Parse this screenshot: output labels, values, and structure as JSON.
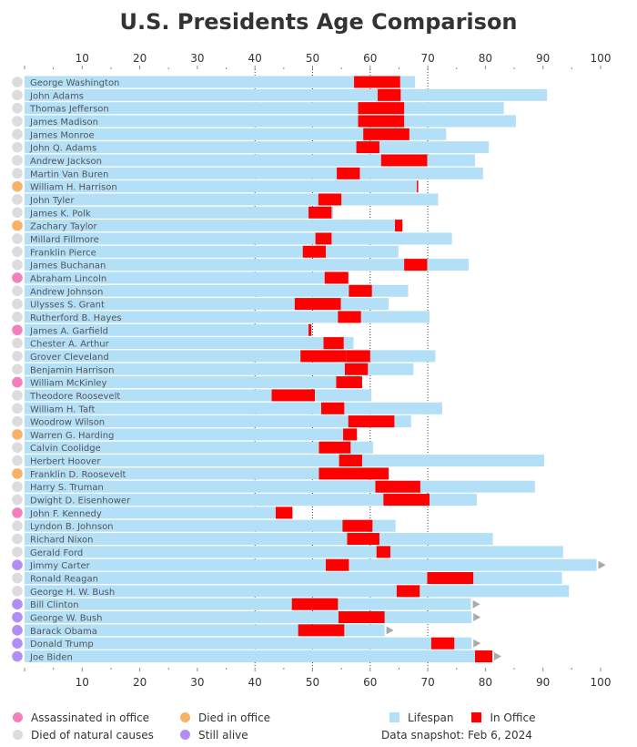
{
  "chart_data": {
    "type": "bar",
    "title": "U.S. Presidents Age Comparison",
    "xlim": [
      0,
      100
    ],
    "xticks": [
      10,
      20,
      30,
      40,
      50,
      60,
      70,
      80,
      90,
      100
    ],
    "gridlines": [
      40,
      50,
      60,
      70
    ],
    "grid_style": "dotted vertical",
    "series": [
      {
        "name": "Lifespan",
        "color": "#b3e0f7"
      },
      {
        "name": "In Office",
        "color": "#ff0000"
      }
    ],
    "categories": {
      "assassinated": {
        "label": "Assassinated in office",
        "color": "#f47fbd"
      },
      "died_in_office": {
        "label": "Died in office",
        "color": "#f7b267"
      },
      "natural": {
        "label": "Died of natural causes",
        "color": "#dcdcdc"
      },
      "alive": {
        "label": "Still alive",
        "color": "#b28df5"
      }
    },
    "presidents": [
      {
        "name": "George Washington",
        "status": "natural",
        "office_start": 57.2,
        "office_end": 65.2,
        "lifespan": 67.8,
        "alive": false
      },
      {
        "name": "John Adams",
        "status": "natural",
        "office_start": 61.3,
        "office_end": 65.3,
        "lifespan": 90.7,
        "alive": false
      },
      {
        "name": "Thomas Jefferson",
        "status": "natural",
        "office_start": 57.9,
        "office_end": 65.9,
        "lifespan": 83.2,
        "alive": false
      },
      {
        "name": "James Madison",
        "status": "natural",
        "office_start": 57.9,
        "office_end": 65.9,
        "lifespan": 85.3,
        "alive": false
      },
      {
        "name": "James Monroe",
        "status": "natural",
        "office_start": 58.8,
        "office_end": 66.8,
        "lifespan": 73.2,
        "alive": false
      },
      {
        "name": "John Q. Adams",
        "status": "natural",
        "office_start": 57.6,
        "office_end": 61.6,
        "lifespan": 80.6,
        "alive": false
      },
      {
        "name": "Andrew Jackson",
        "status": "natural",
        "office_start": 61.9,
        "office_end": 69.9,
        "lifespan": 78.2,
        "alive": false
      },
      {
        "name": "Martin Van Buren",
        "status": "natural",
        "office_start": 54.2,
        "office_end": 58.2,
        "lifespan": 79.6,
        "alive": false
      },
      {
        "name": "William H. Harrison",
        "status": "died_in_office",
        "office_start": 68.1,
        "office_end": 68.2,
        "lifespan": 68.2,
        "alive": false
      },
      {
        "name": "John Tyler",
        "status": "natural",
        "office_start": 51.0,
        "office_end": 55.0,
        "lifespan": 71.8,
        "alive": false
      },
      {
        "name": "James K. Polk",
        "status": "natural",
        "office_start": 49.3,
        "office_end": 53.3,
        "lifespan": 53.6,
        "alive": false
      },
      {
        "name": "Zachary Taylor",
        "status": "died_in_office",
        "office_start": 64.3,
        "office_end": 65.6,
        "lifespan": 65.6,
        "alive": false
      },
      {
        "name": "Millard Fillmore",
        "status": "natural",
        "office_start": 50.5,
        "office_end": 53.3,
        "lifespan": 74.2,
        "alive": false
      },
      {
        "name": "Franklin Pierce",
        "status": "natural",
        "office_start": 48.3,
        "office_end": 52.3,
        "lifespan": 64.9,
        "alive": false
      },
      {
        "name": "James Buchanan",
        "status": "natural",
        "office_start": 65.9,
        "office_end": 69.9,
        "lifespan": 77.1,
        "alive": false
      },
      {
        "name": "Abraham Lincoln",
        "status": "assassinated",
        "office_start": 52.1,
        "office_end": 56.2,
        "lifespan": 56.2,
        "alive": false
      },
      {
        "name": "Andrew Johnson",
        "status": "natural",
        "office_start": 56.3,
        "office_end": 60.3,
        "lifespan": 66.6,
        "alive": false
      },
      {
        "name": "Ulysses S. Grant",
        "status": "natural",
        "office_start": 46.9,
        "office_end": 54.9,
        "lifespan": 63.2,
        "alive": false
      },
      {
        "name": "Rutherford B. Hayes",
        "status": "natural",
        "office_start": 54.4,
        "office_end": 58.4,
        "lifespan": 70.3,
        "alive": false
      },
      {
        "name": "James A. Garfield",
        "status": "assassinated",
        "office_start": 49.3,
        "office_end": 49.8,
        "lifespan": 49.8,
        "alive": false
      },
      {
        "name": "Chester A. Arthur",
        "status": "natural",
        "office_start": 51.9,
        "office_end": 55.4,
        "lifespan": 57.1,
        "alive": false
      },
      {
        "name": "Grover Cleveland",
        "status": "natural",
        "office_start": 47.9,
        "office_end": 55.9,
        "lifespan": 71.3,
        "alive": false,
        "extra_terms": [
          [
            55.9,
            60.0
          ]
        ]
      },
      {
        "name": "Benjamin Harrison",
        "status": "natural",
        "office_start": 55.6,
        "office_end": 59.6,
        "lifespan": 67.5,
        "alive": false
      },
      {
        "name": "William McKinley",
        "status": "assassinated",
        "office_start": 54.1,
        "office_end": 58.6,
        "lifespan": 58.6,
        "alive": false
      },
      {
        "name": "Theodore Roosevelt",
        "status": "natural",
        "office_start": 42.9,
        "office_end": 50.4,
        "lifespan": 60.2,
        "alive": false
      },
      {
        "name": "William H. Taft",
        "status": "natural",
        "office_start": 51.5,
        "office_end": 55.5,
        "lifespan": 72.5,
        "alive": false
      },
      {
        "name": "Woodrow Wilson",
        "status": "natural",
        "office_start": 56.2,
        "office_end": 64.2,
        "lifespan": 67.1,
        "alive": false
      },
      {
        "name": "Warren G. Harding",
        "status": "died_in_office",
        "office_start": 55.3,
        "office_end": 57.7,
        "lifespan": 57.7,
        "alive": false
      },
      {
        "name": "Calvin Coolidge",
        "status": "natural",
        "office_start": 51.1,
        "office_end": 56.6,
        "lifespan": 60.5,
        "alive": false
      },
      {
        "name": "Herbert Hoover",
        "status": "natural",
        "office_start": 54.6,
        "office_end": 58.6,
        "lifespan": 90.2,
        "alive": false
      },
      {
        "name": "Franklin D. Roosevelt",
        "status": "died_in_office",
        "office_start": 51.1,
        "office_end": 63.2,
        "lifespan": 63.2,
        "alive": false
      },
      {
        "name": "Harry S. Truman",
        "status": "natural",
        "office_start": 60.9,
        "office_end": 68.7,
        "lifespan": 88.6,
        "alive": false
      },
      {
        "name": "Dwight D. Eisenhower",
        "status": "natural",
        "office_start": 62.3,
        "office_end": 70.3,
        "lifespan": 78.5,
        "alive": false
      },
      {
        "name": "John F. Kennedy",
        "status": "assassinated",
        "office_start": 43.6,
        "office_end": 46.5,
        "lifespan": 46.5,
        "alive": false
      },
      {
        "name": "Lyndon B. Johnson",
        "status": "natural",
        "office_start": 55.2,
        "office_end": 60.4,
        "lifespan": 64.4,
        "alive": false
      },
      {
        "name": "Richard Nixon",
        "status": "natural",
        "office_start": 56.0,
        "office_end": 61.6,
        "lifespan": 81.3,
        "alive": false
      },
      {
        "name": "Gerald Ford",
        "status": "natural",
        "office_start": 61.1,
        "office_end": 63.5,
        "lifespan": 93.5,
        "alive": false
      },
      {
        "name": "Jimmy Carter",
        "status": "alive",
        "office_start": 52.3,
        "office_end": 56.3,
        "lifespan": 99.3,
        "alive": true
      },
      {
        "name": "Ronald Reagan",
        "status": "natural",
        "office_start": 69.9,
        "office_end": 77.9,
        "lifespan": 93.3,
        "alive": false
      },
      {
        "name": "George H. W. Bush",
        "status": "natural",
        "office_start": 64.6,
        "office_end": 68.6,
        "lifespan": 94.5,
        "alive": false
      },
      {
        "name": "Bill Clinton",
        "status": "alive",
        "office_start": 46.4,
        "office_end": 54.4,
        "lifespan": 77.5,
        "alive": true
      },
      {
        "name": "George W. Bush",
        "status": "alive",
        "office_start": 54.5,
        "office_end": 62.5,
        "lifespan": 77.6,
        "alive": true
      },
      {
        "name": "Barack Obama",
        "status": "alive",
        "office_start": 47.5,
        "office_end": 55.5,
        "lifespan": 62.5,
        "alive": true
      },
      {
        "name": "Donald Trump",
        "status": "alive",
        "office_start": 70.6,
        "office_end": 74.6,
        "lifespan": 77.6,
        "alive": true
      },
      {
        "name": "Joe Biden",
        "status": "alive",
        "office_start": 78.2,
        "office_end": 81.2,
        "lifespan": 81.2,
        "alive": true
      }
    ]
  },
  "legend": {
    "assassinated": "Assassinated in office",
    "natural": "Died of natural causes",
    "died_in_office": "Died in office",
    "alive": "Still alive",
    "lifespan": "Lifespan",
    "in_office": "In Office",
    "snapshot": "Data snapshot: Feb 6, 2024"
  }
}
